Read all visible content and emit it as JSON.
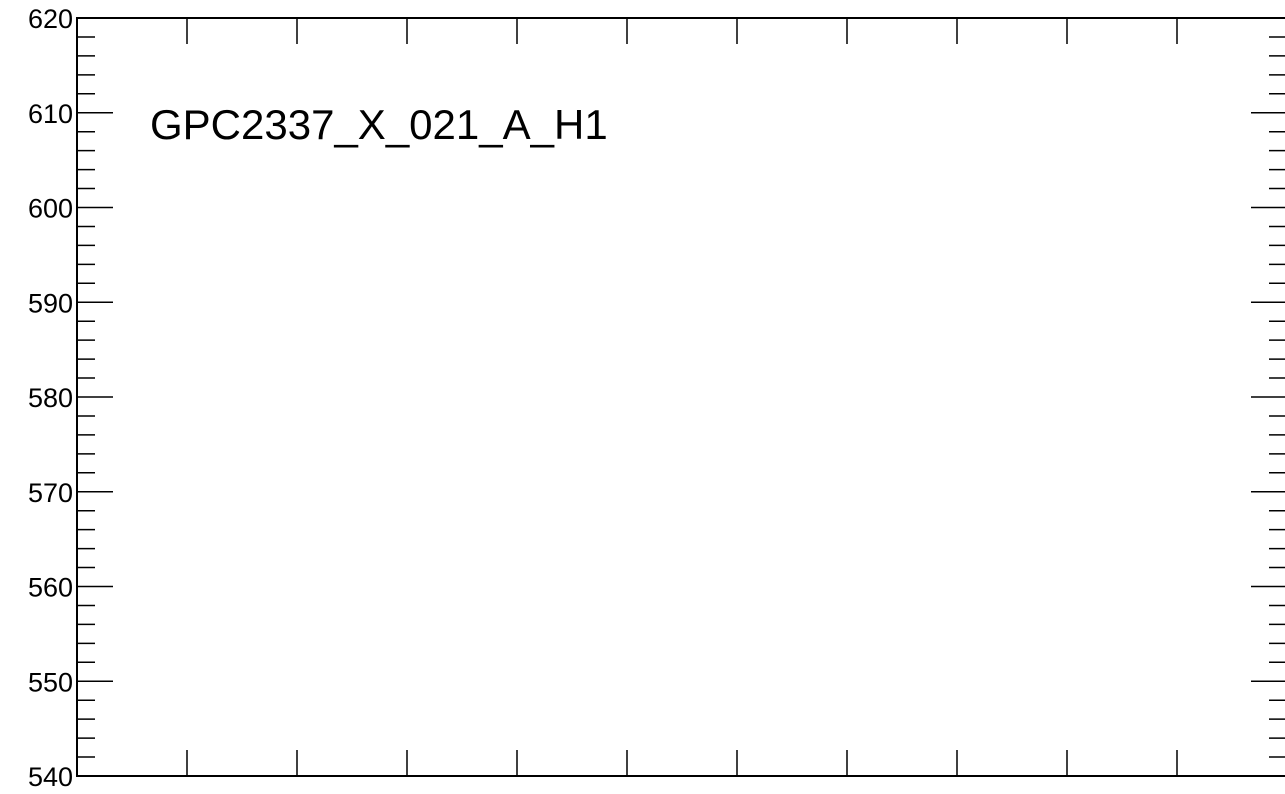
{
  "chart_data": {
    "type": "line",
    "title": "GPC2337_X_021_A_H1",
    "xlabel": "",
    "ylabel": "",
    "ylim": [
      540,
      620
    ],
    "yticks": [
      540,
      550,
      560,
      570,
      580,
      590,
      600,
      610,
      620
    ],
    "x_major_ticks": 11,
    "series": []
  }
}
